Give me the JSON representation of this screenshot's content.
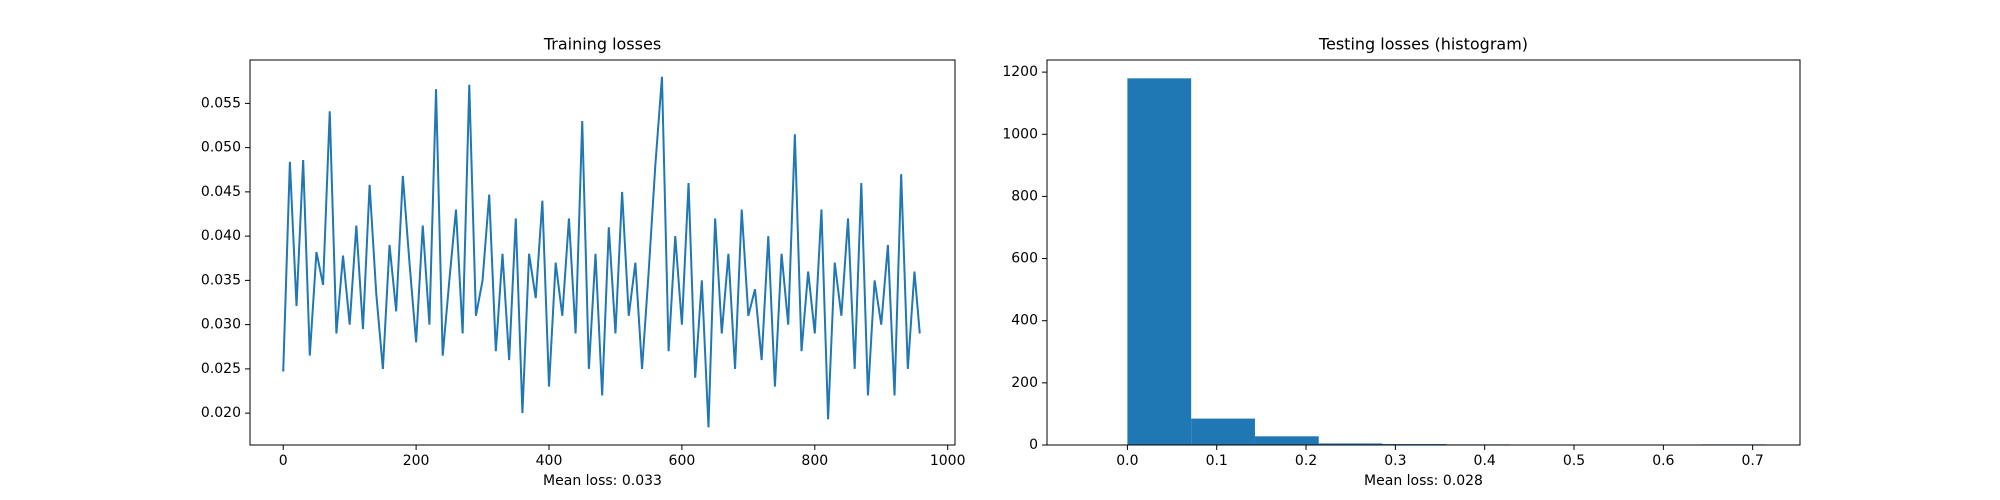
{
  "chart_data": [
    {
      "type": "line",
      "title": "Training losses",
      "xlabel": "Mean loss: 0.033",
      "color": "#1f77b4",
      "x": [
        0,
        10,
        20,
        30,
        40,
        50,
        60,
        70,
        80,
        90,
        100,
        110,
        120,
        130,
        140,
        150,
        160,
        170,
        180,
        190,
        200,
        210,
        220,
        230,
        240,
        250,
        260,
        270,
        280,
        290,
        300,
        310,
        320,
        330,
        340,
        350,
        360,
        370,
        380,
        390,
        400,
        410,
        420,
        430,
        440,
        450,
        460,
        470,
        480,
        490,
        500,
        510,
        520,
        530,
        540,
        550,
        560,
        570,
        580,
        590,
        600,
        610,
        620,
        630,
        640,
        650,
        660,
        670,
        680,
        690,
        700,
        710,
        720,
        730,
        740,
        750,
        760,
        770,
        780,
        790,
        800,
        810,
        820,
        830,
        840,
        850,
        860,
        870,
        880,
        890,
        900,
        910,
        920,
        930,
        940,
        950,
        958
      ],
      "values": [
        0.0247,
        0.0484,
        0.0321,
        0.0486,
        0.0265,
        0.0382,
        0.0345,
        0.0541,
        0.029,
        0.0378,
        0.03,
        0.0412,
        0.0295,
        0.0458,
        0.0335,
        0.025,
        0.039,
        0.0315,
        0.0468,
        0.037,
        0.028,
        0.0412,
        0.03,
        0.0566,
        0.0265,
        0.035,
        0.043,
        0.029,
        0.0571,
        0.031,
        0.035,
        0.0447,
        0.027,
        0.038,
        0.026,
        0.042,
        0.02,
        0.038,
        0.033,
        0.044,
        0.023,
        0.037,
        0.031,
        0.042,
        0.029,
        0.053,
        0.025,
        0.038,
        0.022,
        0.041,
        0.029,
        0.045,
        0.031,
        0.037,
        0.025,
        0.036,
        0.048,
        0.058,
        0.027,
        0.04,
        0.03,
        0.046,
        0.024,
        0.035,
        0.0184,
        0.042,
        0.029,
        0.038,
        0.025,
        0.043,
        0.031,
        0.034,
        0.026,
        0.04,
        0.023,
        0.038,
        0.03,
        0.0515,
        0.027,
        0.036,
        0.029,
        0.043,
        0.0193,
        0.037,
        0.031,
        0.042,
        0.025,
        0.046,
        0.022,
        0.035,
        0.03,
        0.039,
        0.022,
        0.047,
        0.025,
        0.036,
        0.029
      ],
      "xlim": [
        -50,
        1011
      ],
      "xticks": [
        0,
        200,
        400,
        600,
        800,
        1000
      ],
      "ylim": [
        0.0164,
        0.0599
      ],
      "yticks": [
        {
          "value": 0.02,
          "label": "0.020"
        },
        {
          "value": 0.025,
          "label": "0.025"
        },
        {
          "value": 0.03,
          "label": "0.030"
        },
        {
          "value": 0.035,
          "label": "0.035"
        },
        {
          "value": 0.04,
          "label": "0.040"
        },
        {
          "value": 0.045,
          "label": "0.045"
        },
        {
          "value": 0.05,
          "label": "0.050"
        },
        {
          "value": 0.055,
          "label": "0.055"
        }
      ]
    },
    {
      "type": "histogram",
      "title": "Testing losses (histogram)",
      "xlabel": "Mean loss: 0.028",
      "color": "#1f77b4",
      "bins": [
        0,
        0.0714,
        0.1428,
        0.2142,
        0.2856,
        0.357,
        0.4284,
        0.4998,
        0.5712,
        0.6426,
        0.714
      ],
      "values": [
        1180,
        85,
        28,
        5,
        3,
        2,
        0,
        0,
        0,
        2
      ],
      "xlim": [
        -0.09,
        0.753
      ],
      "xticks": [
        {
          "value": 0,
          "label": "0.0"
        },
        0.1,
        0.2,
        0.3,
        0.4,
        0.5,
        0.6,
        0.7
      ],
      "ylim": [
        0,
        1239
      ],
      "yticks": [
        0,
        200,
        400,
        600,
        800,
        1000,
        1200
      ]
    }
  ]
}
